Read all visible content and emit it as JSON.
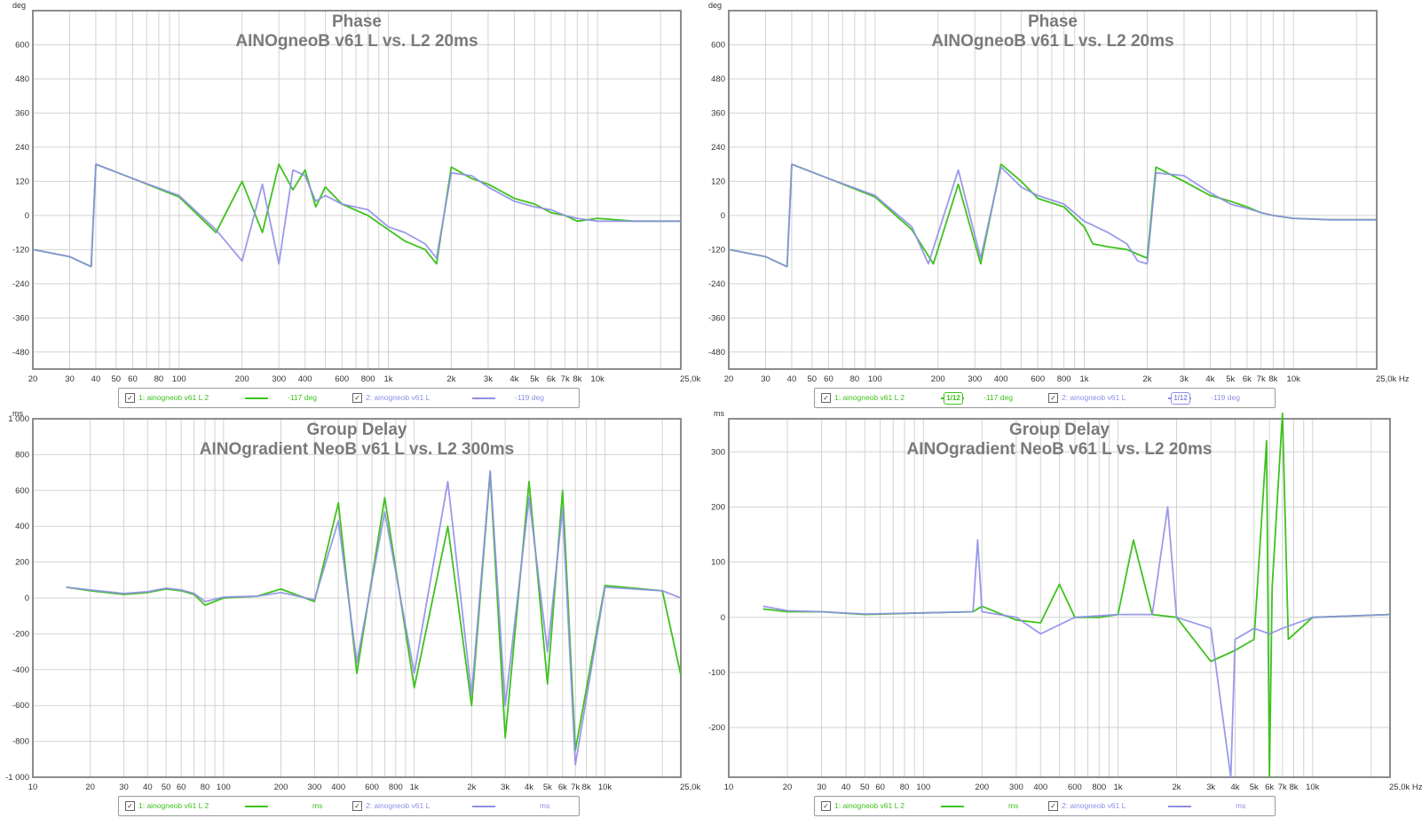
{
  "colors": {
    "series1": "#3ec21e",
    "series2": "#8f8fe8",
    "grid": "#d2d2d2",
    "frame": "#8c8c8c",
    "text": "#333333",
    "title": "#7a7a7a"
  },
  "x_axis_ticks": [
    "20",
    "30",
    "40",
    "50",
    "60",
    "80",
    "100",
    "200",
    "300",
    "400",
    "600",
    "800",
    "1k",
    "2k",
    "3k",
    "4k",
    "5k",
    "6k",
    "7k",
    "8k",
    "10k",
    "25,0k Hz"
  ],
  "panels": [
    {
      "unit": "deg",
      "title": "Phase",
      "subtitle": "AINOgneoB v61 L vs. L2 20ms",
      "legend": {
        "check": "✓",
        "item1_label": "1: ainogneob v61 L 2",
        "item1_value": "-117 deg",
        "item2_label": "2: ainogneob v61 L",
        "item2_value": "-119 deg"
      }
    },
    {
      "unit": "deg",
      "title": "Phase",
      "subtitle": "AINOgneoB v61 L vs. L2 20ms",
      "legend": {
        "check": "✓",
        "item1_label": "1: ainogneob v61 L 2",
        "item1_smoothing": "1/12",
        "item1_value": "-117 deg",
        "item2_label": "2: ainogneob v61 L",
        "item2_smoothing": "1/12",
        "item2_value": "-119 deg"
      }
    },
    {
      "unit": "ms",
      "title": "Group Delay",
      "subtitle": "AINOgradient NeoB v61 L vs. L2 300ms",
      "legend": {
        "check": "✓",
        "item1_label": "1: ainogneob v61 L 2",
        "item1_value": "ms",
        "item2_label": "2: ainogneob v61 L",
        "item2_value": "ms"
      }
    },
    {
      "unit": "ms",
      "title": "Group Delay",
      "subtitle": "AINOgradient NeoB v61 L vs. L2 20ms",
      "legend": {
        "check": "✓",
        "item1_label": "1: ainogneob v61 L 2",
        "item1_value": "ms",
        "item2_label": "2: ainogneob v61 L",
        "item2_value": "ms"
      }
    }
  ],
  "chart_data": [
    {
      "type": "line",
      "title": "Phase",
      "subtitle": "AINOgneoB v61 L vs. L2 20ms",
      "xlabel": "Hz",
      "ylabel": "deg",
      "xscale": "log",
      "xlim": [
        20,
        25000
      ],
      "ylim": [
        -540,
        720
      ],
      "yticks": [
        600,
        480,
        360,
        240,
        120,
        0,
        -120,
        -240,
        -360,
        -480
      ],
      "xticks": [
        20,
        30,
        40,
        50,
        60,
        80,
        100,
        200,
        300,
        400,
        600,
        800,
        1000,
        2000,
        3000,
        4000,
        5000,
        6000,
        7000,
        8000,
        10000,
        25000
      ],
      "grid": true,
      "legend_position": "bottom",
      "series": [
        {
          "name": "1: ainogneob v61 L 2",
          "x": [
            20,
            30,
            38,
            40,
            60,
            100,
            150,
            200,
            250,
            300,
            350,
            400,
            450,
            500,
            600,
            800,
            1000,
            1200,
            1500,
            1700,
            2000,
            2500,
            3000,
            4000,
            5000,
            6000,
            7000,
            8000,
            10000,
            15000,
            25000
          ],
          "y": [
            -120,
            -145,
            -180,
            180,
            130,
            65,
            -60,
            120,
            -60,
            180,
            90,
            160,
            30,
            100,
            40,
            0,
            -50,
            -90,
            -120,
            -170,
            170,
            130,
            110,
            60,
            40,
            10,
            0,
            -20,
            -10,
            -20,
            -20
          ]
        },
        {
          "name": "2: ainogneob v61 L",
          "x": [
            20,
            30,
            38,
            40,
            60,
            100,
            150,
            200,
            250,
            300,
            350,
            400,
            450,
            500,
            600,
            800,
            1000,
            1200,
            1500,
            1700,
            2000,
            2500,
            3000,
            4000,
            5000,
            6000,
            7000,
            8000,
            10000,
            15000,
            25000
          ],
          "y": [
            -120,
            -145,
            -180,
            180,
            130,
            70,
            -50,
            -160,
            110,
            -170,
            160,
            140,
            50,
            70,
            40,
            20,
            -40,
            -60,
            -100,
            -150,
            150,
            140,
            100,
            50,
            30,
            20,
            0,
            -10,
            -20,
            -20,
            -20
          ]
        }
      ]
    },
    {
      "type": "line",
      "title": "Phase",
      "subtitle": "AINOgneoB v61 L vs. L2 20ms",
      "xlabel": "Hz",
      "ylabel": "deg",
      "xscale": "log",
      "xlim": [
        20,
        25000
      ],
      "ylim": [
        -540,
        720
      ],
      "yticks": [
        600,
        480,
        360,
        240,
        120,
        0,
        -120,
        -240,
        -360,
        -480
      ],
      "xticks": [
        20,
        30,
        40,
        50,
        60,
        80,
        100,
        200,
        300,
        400,
        600,
        800,
        1000,
        2000,
        3000,
        4000,
        5000,
        6000,
        7000,
        8000,
        10000,
        25000
      ],
      "grid": true,
      "legend_position": "bottom",
      "series": [
        {
          "name": "1: ainogneob v61 L 2",
          "x": [
            20,
            30,
            38,
            40,
            60,
            100,
            150,
            190,
            250,
            320,
            400,
            500,
            600,
            800,
            1000,
            1100,
            1300,
            1600,
            2000,
            2200,
            3000,
            4000,
            5000,
            6000,
            7000,
            8000,
            10000,
            15000,
            25000
          ],
          "y": [
            -120,
            -145,
            -180,
            180,
            130,
            65,
            -50,
            -170,
            110,
            -170,
            180,
            120,
            60,
            30,
            -40,
            -100,
            -110,
            -120,
            -150,
            170,
            120,
            70,
            50,
            30,
            10,
            0,
            -10,
            -15,
            -15
          ]
        },
        {
          "name": "2: ainogneob v61 L",
          "x": [
            20,
            30,
            38,
            40,
            60,
            100,
            150,
            180,
            250,
            320,
            400,
            500,
            600,
            800,
            1000,
            1300,
            1600,
            1800,
            2000,
            2200,
            3000,
            4000,
            5000,
            6000,
            7000,
            8000,
            10000,
            15000,
            25000
          ],
          "y": [
            -120,
            -145,
            -180,
            180,
            130,
            70,
            -40,
            -170,
            160,
            -150,
            170,
            100,
            70,
            40,
            -20,
            -60,
            -100,
            -160,
            -170,
            150,
            140,
            80,
            40,
            25,
            10,
            0,
            -10,
            -15,
            -15
          ]
        }
      ]
    },
    {
      "type": "line",
      "title": "Group Delay",
      "subtitle": "AINOgradient NeoB v61 L vs. L2 300ms",
      "xlabel": "Hz",
      "ylabel": "ms",
      "xscale": "log",
      "xlim": [
        10,
        25000
      ],
      "ylim": [
        -1000,
        1000
      ],
      "yticks": [
        1000,
        800,
        600,
        400,
        200,
        0,
        -200,
        -400,
        -600,
        -800,
        -1000
      ],
      "ytick_labels": [
        "1 000",
        "800",
        "600",
        "400",
        "200",
        "0",
        "-200",
        "-400",
        "-600",
        "-800",
        "-1 000"
      ],
      "xticks": [
        10,
        20,
        30,
        40,
        50,
        60,
        80,
        100,
        200,
        300,
        400,
        600,
        800,
        1000,
        2000,
        3000,
        4000,
        5000,
        6000,
        7000,
        8000,
        10000,
        25000
      ],
      "xtick_labels": [
        "10",
        "20",
        "30",
        "40",
        "50",
        "60",
        "80",
        "100",
        "200",
        "300",
        "400",
        "600",
        "800",
        "1k",
        "2k",
        "3k",
        "4k",
        "5k",
        "6k",
        "7k",
        "8k",
        "10k",
        "25,0k Hz"
      ],
      "grid": true,
      "legend_position": "bottom",
      "series": [
        {
          "name": "1: ainogneob v61 L 2",
          "x": [
            15,
            20,
            30,
            40,
            50,
            60,
            70,
            80,
            100,
            150,
            200,
            300,
            400,
            500,
            700,
            1000,
            1500,
            2000,
            2500,
            3000,
            4000,
            5000,
            6000,
            7000,
            10000,
            20000,
            25000
          ],
          "y": [
            60,
            40,
            20,
            30,
            50,
            40,
            20,
            -40,
            0,
            10,
            50,
            -20,
            530,
            -420,
            560,
            -500,
            400,
            -600,
            700,
            -780,
            650,
            -480,
            600,
            -850,
            70,
            40,
            -430
          ]
        },
        {
          "name": "2: ainogneob v61 L",
          "x": [
            15,
            20,
            30,
            40,
            50,
            60,
            70,
            80,
            100,
            150,
            200,
            300,
            400,
            500,
            700,
            1000,
            1500,
            2000,
            2500,
            3000,
            4000,
            5000,
            6000,
            7000,
            10000,
            20000,
            25000
          ],
          "y": [
            60,
            45,
            25,
            35,
            55,
            45,
            25,
            -20,
            5,
            10,
            30,
            -10,
            430,
            -360,
            480,
            -420,
            650,
            -540,
            710,
            -600,
            560,
            -300,
            500,
            -930,
            60,
            40,
            0
          ]
        }
      ]
    },
    {
      "type": "line",
      "title": "Group Delay",
      "subtitle": "AINOgradient NeoB v61 L vs. L2 20ms",
      "xlabel": "Hz",
      "ylabel": "ms",
      "xscale": "log",
      "xlim": [
        10,
        25000
      ],
      "ylim": [
        -290,
        360
      ],
      "yticks": [
        300,
        200,
        100,
        0,
        -100,
        -200
      ],
      "xticks": [
        10,
        20,
        30,
        40,
        50,
        60,
        80,
        100,
        200,
        300,
        400,
        600,
        800,
        1000,
        2000,
        3000,
        4000,
        5000,
        6000,
        7000,
        8000,
        10000,
        25000
      ],
      "xtick_labels": [
        "10",
        "20",
        "30",
        "40",
        "50",
        "60",
        "80",
        "100",
        "200",
        "300",
        "400",
        "600",
        "800",
        "1k",
        "2k",
        "3k",
        "4k",
        "5k",
        "6k",
        "7k",
        "8k",
        "10k",
        "25,0k Hz"
      ],
      "grid": true,
      "legend_position": "bottom",
      "series": [
        {
          "name": "1: ainogneob v61 L 2",
          "x": [
            15,
            20,
            30,
            50,
            100,
            180,
            200,
            300,
            400,
            500,
            600,
            800,
            1000,
            1200,
            1500,
            2000,
            3000,
            4000,
            5000,
            5800,
            6000,
            6200,
            7000,
            7500,
            10000,
            25000
          ],
          "y": [
            15,
            10,
            10,
            5,
            8,
            10,
            20,
            -5,
            -10,
            60,
            0,
            0,
            5,
            140,
            5,
            0,
            -80,
            -60,
            -40,
            320,
            -290,
            55,
            370,
            -40,
            0,
            5
          ]
        },
        {
          "name": "2: ainogneob v61 L",
          "x": [
            15,
            20,
            30,
            50,
            100,
            180,
            190,
            200,
            300,
            400,
            600,
            1000,
            1500,
            1800,
            2000,
            3000,
            3800,
            4000,
            5000,
            6000,
            7000,
            10000,
            25000
          ],
          "y": [
            20,
            12,
            10,
            6,
            8,
            10,
            140,
            10,
            0,
            -30,
            0,
            5,
            5,
            200,
            0,
            -20,
            -290,
            -40,
            -20,
            -30,
            -20,
            0,
            5
          ]
        }
      ]
    }
  ]
}
